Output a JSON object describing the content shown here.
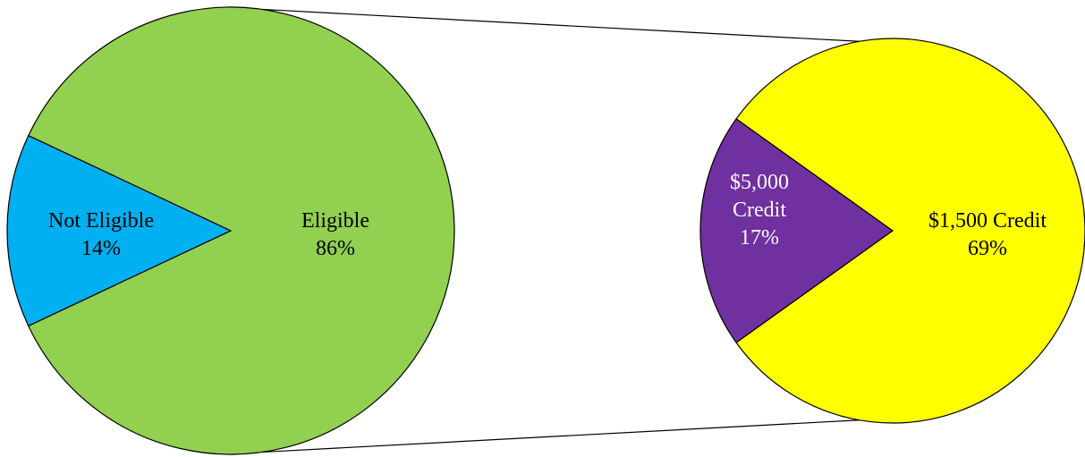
{
  "chart_data": [
    {
      "type": "pie",
      "slices": [
        {
          "label": "Not Eligible",
          "value": 14,
          "value_text": "14%",
          "color": "#00b0f0",
          "text_color": "#000000"
        },
        {
          "label": "Eligible",
          "value": 86,
          "value_text": "86%",
          "color": "#92d050",
          "text_color": "#000000"
        }
      ]
    },
    {
      "type": "pie",
      "slices": [
        {
          "label_lines": [
            "$5,000",
            "Credit"
          ],
          "value": 17,
          "value_text": "17%",
          "color": "#7030a0",
          "text_color": "#ffffff"
        },
        {
          "label_lines": [
            "$1,500 Credit"
          ],
          "value": 69,
          "value_text": "69%",
          "color": "#ffff00",
          "text_color": "#000000"
        }
      ]
    }
  ],
  "connector_color": "#000000",
  "outline_color": "#000000"
}
